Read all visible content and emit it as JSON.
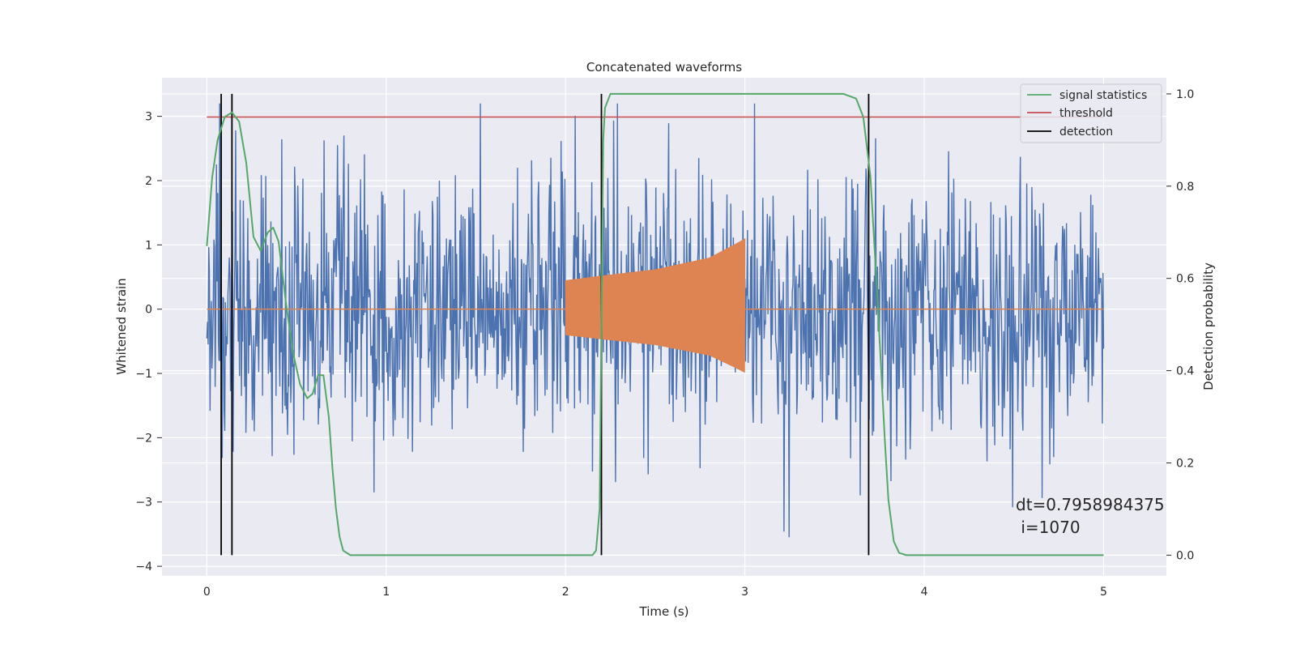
{
  "chart_data": {
    "type": "line",
    "title": "Concatenated waveforms",
    "xlabel": "Time (s)",
    "ylabel_left": "Whitened strain",
    "ylabel_right": "Detection probability",
    "xlim": [
      -0.25,
      5.35
    ],
    "ylim_left": [
      -4.15,
      3.6
    ],
    "ylim_right": [
      -0.045,
      1.035
    ],
    "x_ticks": [
      0,
      1,
      2,
      3,
      4,
      5
    ],
    "x_tick_labels": [
      "0",
      "1",
      "2",
      "3",
      "4",
      "5"
    ],
    "y_left_ticks": [
      3,
      2,
      1,
      0,
      -1,
      -2,
      -3,
      -4
    ],
    "y_left_tick_labels": [
      "3",
      "2",
      "1",
      "0",
      "−1",
      "−2",
      "−3",
      "−4"
    ],
    "y_right_ticks": [
      1.0,
      0.8,
      0.6,
      0.4,
      0.2,
      0.0
    ],
    "y_right_tick_labels": [
      "1.0",
      "0.8",
      "0.6",
      "0.4",
      "0.2",
      "0.0"
    ],
    "grid": true,
    "legend_position": "top-right",
    "colors": {
      "noise": "#4c72b0",
      "injected_signal": "#dd8452",
      "signal_statistics": "#55a868",
      "threshold": "#c44e52",
      "detection": "#000000",
      "background": "#eaeaf2",
      "grid": "#ffffff"
    },
    "series": [
      {
        "name": "",
        "axis": "left",
        "kind": "noise",
        "x_range": [
          0,
          5
        ],
        "amplitude_typical": 1.0,
        "peak_min": -3.6,
        "peak_max": 3.2
      },
      {
        "name": "",
        "axis": "left",
        "kind": "chirp",
        "x_range": [
          2.0,
          3.0
        ],
        "envelope": [
          [
            2.0,
            0.45
          ],
          [
            2.2,
            0.52
          ],
          [
            2.5,
            0.62
          ],
          [
            2.8,
            0.8
          ],
          [
            2.95,
            1.02
          ],
          [
            3.0,
            1.1
          ]
        ]
      },
      {
        "name": "signal statistics",
        "axis": "right",
        "points": [
          [
            0.0,
            0.67
          ],
          [
            0.03,
            0.82
          ],
          [
            0.06,
            0.9
          ],
          [
            0.1,
            0.95
          ],
          [
            0.14,
            0.96
          ],
          [
            0.18,
            0.94
          ],
          [
            0.22,
            0.85
          ],
          [
            0.26,
            0.69
          ],
          [
            0.3,
            0.66
          ],
          [
            0.34,
            0.7
          ],
          [
            0.37,
            0.71
          ],
          [
            0.4,
            0.68
          ],
          [
            0.44,
            0.55
          ],
          [
            0.48,
            0.44
          ],
          [
            0.52,
            0.37
          ],
          [
            0.56,
            0.34
          ],
          [
            0.59,
            0.35
          ],
          [
            0.62,
            0.39
          ],
          [
            0.65,
            0.39
          ],
          [
            0.68,
            0.3
          ],
          [
            0.7,
            0.19
          ],
          [
            0.72,
            0.1
          ],
          [
            0.74,
            0.04
          ],
          [
            0.76,
            0.01
          ],
          [
            0.8,
            0.0
          ],
          [
            1.5,
            0.0
          ],
          [
            2.15,
            0.0
          ],
          [
            2.17,
            0.01
          ],
          [
            2.19,
            0.1
          ],
          [
            2.2,
            0.5
          ],
          [
            2.21,
            0.9
          ],
          [
            2.22,
            0.97
          ],
          [
            2.25,
            1.0
          ],
          [
            2.5,
            1.0
          ],
          [
            3.0,
            1.0
          ],
          [
            3.55,
            1.0
          ],
          [
            3.62,
            0.99
          ],
          [
            3.66,
            0.95
          ],
          [
            3.7,
            0.82
          ],
          [
            3.74,
            0.55
          ],
          [
            3.78,
            0.25
          ],
          [
            3.8,
            0.12
          ],
          [
            3.83,
            0.03
          ],
          [
            3.86,
            0.005
          ],
          [
            3.9,
            0.0
          ],
          [
            4.5,
            0.0
          ],
          [
            5.0,
            0.0
          ]
        ]
      },
      {
        "name": "threshold",
        "axis": "right",
        "points": [
          [
            0.0,
            0.95
          ],
          [
            5.0,
            0.95
          ]
        ]
      },
      {
        "name": "detection",
        "axis": "right",
        "vlines": [
          0.08,
          0.14,
          2.2,
          3.69
        ],
        "span": [
          0.0,
          1.0
        ]
      }
    ],
    "legend": [
      "signal statistics",
      "threshold",
      "detection"
    ],
    "annotation": {
      "line1": "dt=0.7958984375",
      "line2": " i=1070",
      "x": 4.5,
      "y_right": 0.1
    }
  }
}
